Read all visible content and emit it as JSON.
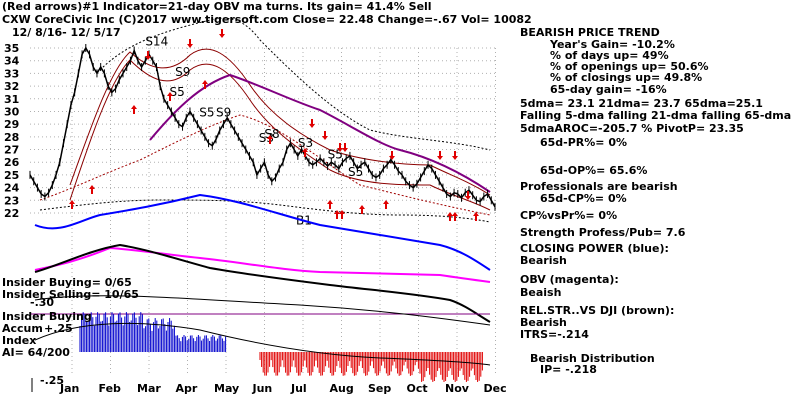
{
  "header": {
    "line1": "(Red arrows)#1 Indicator=21-day OBV ma turns. Its gain= 41.4% Sell",
    "line2": "CXW  CoreCivic Inc  (C)2017 www.tigersoft.com    Close=  22.48  Change=-.67 Vol= 10082",
    "date_range": "12/ 8/16- 12/ 5/17"
  },
  "chart_data": {
    "type": "line",
    "title": "",
    "ylim": [
      22,
      35
    ],
    "y_ticks": [
      35,
      34,
      33,
      32,
      31,
      30,
      29,
      28,
      27,
      26,
      25,
      24,
      23,
      22
    ],
    "x_ticks": [
      "Jan",
      "Feb",
      "Mar",
      "Apr",
      "May",
      "Jun",
      "Jul",
      "Aug",
      "Sep",
      "Oct",
      "Nov",
      "Dec"
    ],
    "grid": true,
    "price_series": {
      "name": "CXW",
      "x": [
        0,
        2,
        4,
        6,
        8,
        10,
        12,
        14,
        16,
        18,
        20,
        22,
        24,
        26,
        28,
        30,
        32,
        34,
        36,
        38,
        40,
        42,
        44,
        46,
        48,
        50,
        52,
        54,
        56,
        58,
        60,
        62,
        64,
        66,
        68,
        70,
        72,
        74,
        76,
        78,
        80,
        82,
        84,
        86,
        88,
        90,
        92,
        94,
        96,
        98,
        100,
        102,
        104,
        106,
        108,
        110,
        112,
        114,
        116,
        118,
        120,
        122,
        124,
        126,
        128,
        130,
        132,
        134,
        136,
        138,
        140,
        142,
        144,
        146,
        148,
        150,
        152,
        154,
        156,
        158,
        160,
        162,
        164,
        166,
        168,
        170,
        172,
        174,
        176,
        178,
        180,
        182,
        184,
        186,
        188,
        190,
        192,
        194,
        196,
        198,
        200,
        202,
        204,
        206,
        208,
        210,
        212,
        214,
        216,
        218,
        220,
        222,
        224,
        226,
        228,
        230,
        232,
        234,
        236,
        238,
        240,
        242,
        244,
        246,
        248,
        250
      ],
      "y": [
        25.0,
        24.5,
        24.0,
        23.5,
        23.3,
        23.6,
        24.2,
        25.0,
        26.0,
        27.5,
        29.0,
        30.5,
        31.5,
        33.0,
        34.5,
        35.0,
        34.5,
        33.5,
        33.0,
        33.5,
        33.0,
        32.0,
        31.5,
        31.8,
        32.5,
        33.0,
        33.5,
        34.0,
        34.8,
        34.0,
        33.5,
        34.0,
        34.5,
        34.0,
        33.5,
        32.0,
        31.0,
        30.5,
        30.0,
        29.5,
        29.0,
        28.8,
        29.5,
        30.0,
        29.5,
        29.0,
        28.5,
        28.0,
        27.5,
        27.3,
        27.8,
        28.5,
        29.0,
        29.5,
        29.0,
        28.5,
        28.0,
        27.5,
        27.0,
        26.5,
        26.0,
        25.0,
        25.5,
        26.0,
        25.0,
        24.5,
        24.8,
        25.5,
        26.0,
        27.0,
        27.5,
        27.0,
        26.5,
        27.0,
        26.5,
        26.0,
        25.8,
        26.0,
        26.3,
        26.0,
        25.7,
        26.0,
        25.8,
        25.5,
        26.0,
        26.3,
        26.5,
        26.0,
        25.5,
        25.8,
        26.0,
        25.5,
        25.0,
        24.8,
        25.0,
        25.5,
        25.8,
        26.2,
        25.8,
        25.3,
        25.0,
        24.5,
        24.2,
        24.0,
        24.3,
        24.8,
        25.3,
        25.8,
        25.5,
        25.0,
        24.5,
        24.0,
        23.5,
        23.3,
        23.6,
        23.5,
        23.2,
        23.6,
        23.8,
        23.4,
        23.0,
        22.9,
        23.3,
        23.5,
        23.0,
        22.48
      ]
    },
    "signals": [
      {
        "label": "S14",
        "x": 62,
        "y": 35.2
      },
      {
        "label": "S9",
        "x": 78,
        "y": 32.8
      },
      {
        "label": "S5",
        "x": 75,
        "y": 31.2
      },
      {
        "label": "S5",
        "x": 91,
        "y": 29.6
      },
      {
        "label": "S9",
        "x": 100,
        "y": 29.6
      },
      {
        "label": "S8",
        "x": 126,
        "y": 27.9
      },
      {
        "label": "S3",
        "x": 123,
        "y": 27.6
      },
      {
        "label": "S3",
        "x": 144,
        "y": 27.2
      },
      {
        "label": "S5",
        "x": 160,
        "y": 26.3
      },
      {
        "label": "S5",
        "x": 171,
        "y": 24.9
      }
    ],
    "panel_labels": [
      {
        "label": "B1",
        "x": 143,
        "y": 21.1
      }
    ]
  },
  "indicator_panel": {
    "insider_buying": "Insider Buying= 0/65",
    "insider_selling": "Insider Selling= 10/65",
    "accum_label": "Insider Buying",
    "accum_sub": "Accum",
    "plus25": "+.25",
    "minus30": "-.30",
    "index": "Index",
    "ai": "AI= 64/200",
    "minus25": "-.25"
  },
  "right_panel": {
    "title": "BEARISH PRICE TREND",
    "years_gain": "Year's Gain= -10.2%",
    "days_up": "% of days up= 49%",
    "openings_up": "% of openings up= 50.6%",
    "closings_up": "% of closings up= 49.8%",
    "gain65": "65-day gain= -16%",
    "dma": "5dma= 23.1 21dma= 23.7 65dma=25.1",
    "falling": "Falling 5-dma falling 21-dma falling 65-dma",
    "aroc": "5dmaAROC=-205.7 %  PivotP= 23.35",
    "pr65": "65d-PR%= 0%",
    "op65": "65d-OP%= 65.6%",
    "professionals": "Professionals are bearish",
    "cp65": "65d-CP%= 0%",
    "cpvspr": "CP%vsPr%=  0%",
    "strength": "Strength Profess/Pub= 7.6",
    "closing_power": "CLOSING POWER (blue):",
    "cp_bearish": "Bearish",
    "obv": "OBV (magenta):",
    "obv_bearish": "Beaish",
    "relstr": "REL.STR..VS DJI (brown):",
    "relstr_bearish": "Bearish",
    "itrs": "ITRS=-.214",
    "distribution": "Bearish Distribution",
    "ip": "IP= -.218"
  }
}
